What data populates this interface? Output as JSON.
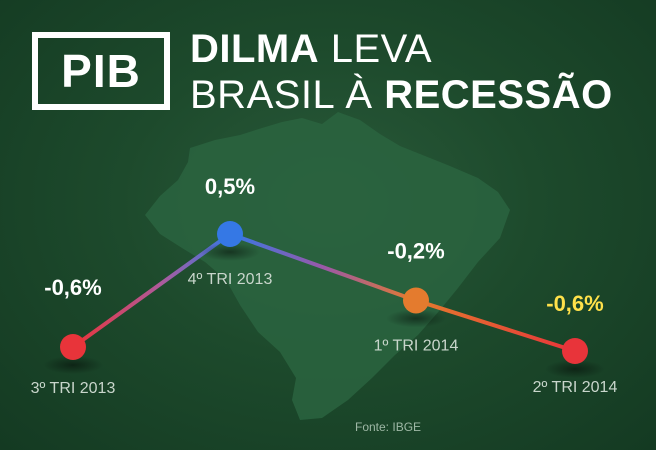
{
  "logo": {
    "text": "PIB"
  },
  "headline": {
    "line1_bold": "DILMA",
    "line1_rest": " LEVA",
    "line2_rest": "BRASIL À ",
    "line2_bold": "RECESSÃO"
  },
  "source": "Fonte: IBGE",
  "colors": {
    "background": "#1d4a2c",
    "map": "#2a6440",
    "text": "#ffffff",
    "last_value": "#ffe14a"
  },
  "chart_data": {
    "type": "line",
    "categories": [
      "3º TRI 2013",
      "4º TRI 2013",
      "1º TRI 2014",
      "2º TRI 2014"
    ],
    "values": [
      -0.6,
      0.5,
      -0.2,
      -0.6
    ],
    "value_labels": [
      "-0,6%",
      "0,5%",
      "-0,2%",
      "-0,6%"
    ],
    "point_colors": [
      "#e8343a",
      "#3578e5",
      "#e47b2e",
      "#e8343a"
    ],
    "label_colors": [
      "#ffffff",
      "#ffffff",
      "#ffffff",
      "#ffe14a"
    ],
    "ylim": [
      -0.6,
      0.5
    ],
    "grid": false,
    "legend": "none"
  }
}
